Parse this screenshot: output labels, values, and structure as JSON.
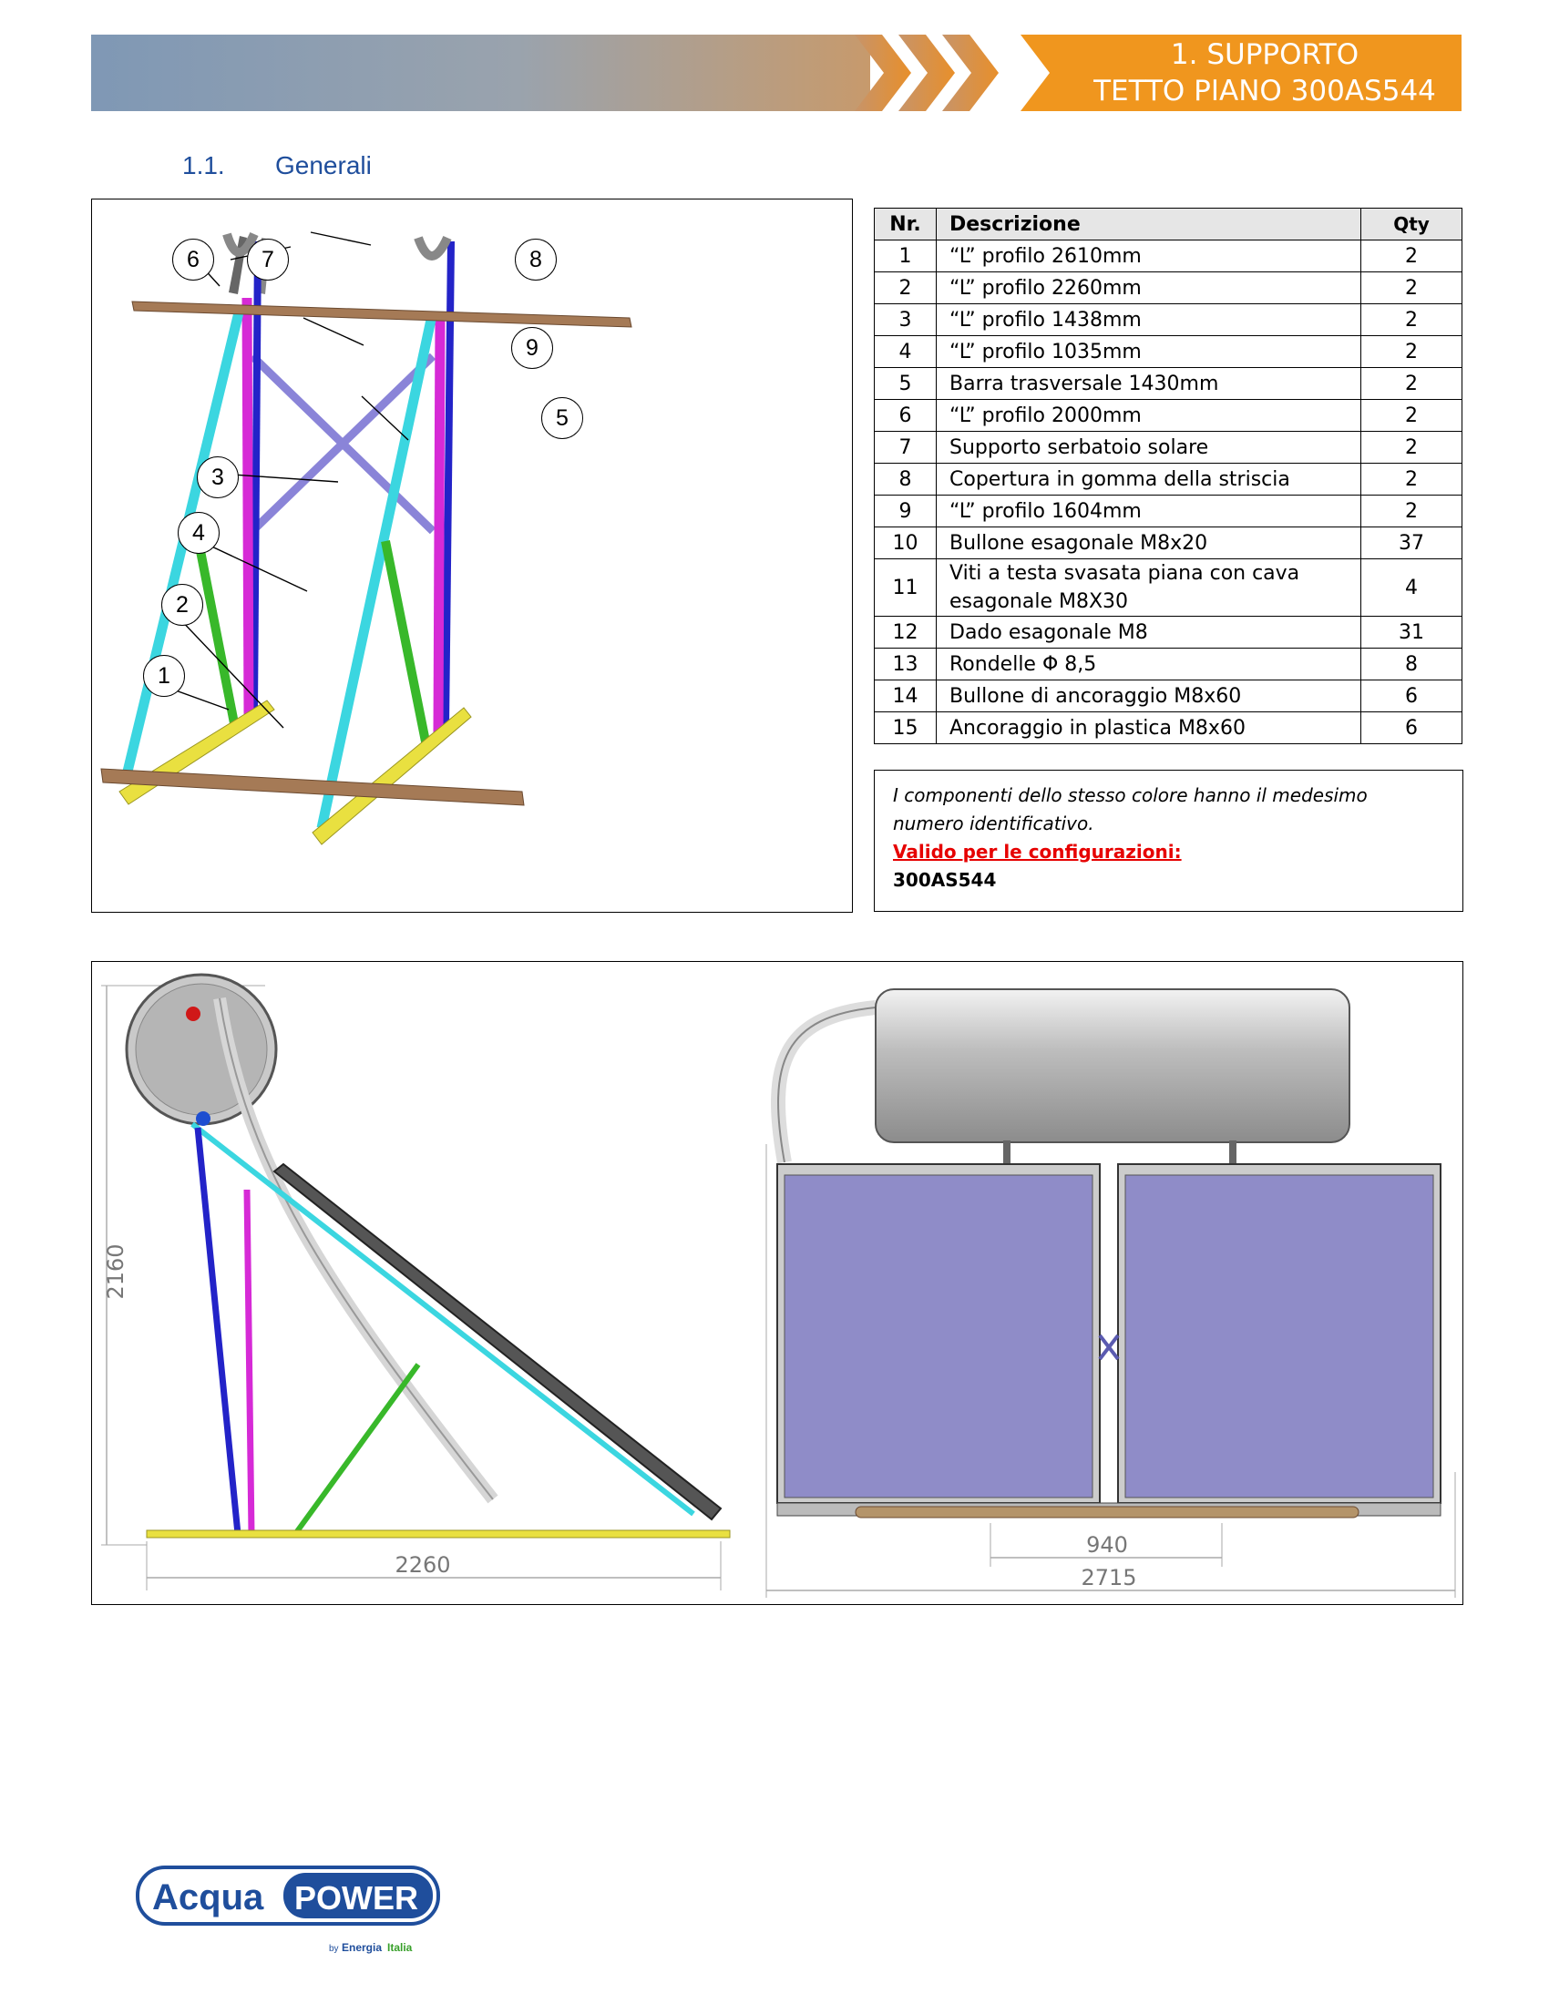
{
  "header": {
    "title_line1": "1.  SUPPORTO",
    "title_line2": "TETTO PIANO   300AS544",
    "banner_gradient": [
      "#7f98b5",
      "#c79a6c"
    ],
    "accent_color": "#f0961e"
  },
  "section": {
    "number": "1.1.",
    "title": "Generali"
  },
  "callouts": [
    "1",
    "2",
    "3",
    "4",
    "5",
    "6",
    "7",
    "8",
    "9"
  ],
  "parts_table": {
    "headers": {
      "nr": "Nr.",
      "desc": "Descrizione",
      "qty": "Qty"
    },
    "rows": [
      {
        "nr": "1",
        "desc": "“L” profilo   2610mm",
        "qty": "2"
      },
      {
        "nr": "2",
        "desc": "“L” profilo   2260mm",
        "qty": "2"
      },
      {
        "nr": "3",
        "desc": "“L” profilo   1438mm",
        "qty": "2"
      },
      {
        "nr": "4",
        "desc": "“L” profilo   1035mm",
        "qty": "2"
      },
      {
        "nr": "5",
        "desc": "Barra trasversale    1430mm",
        "qty": "2"
      },
      {
        "nr": "6",
        "desc": "“L” profilo   2000mm",
        "qty": "2"
      },
      {
        "nr": "7",
        "desc": "Supporto  serbatoio solare",
        "qty": "2"
      },
      {
        "nr": "8",
        "desc": "Copertura in gomma della striscia",
        "qty": "2"
      },
      {
        "nr": "9",
        "desc": "“L” profilo 1604mm",
        "qty": "2"
      },
      {
        "nr": "10",
        "desc": "Bullone esagonale M8x20",
        "qty": "37"
      },
      {
        "nr": "11",
        "desc": "Viti a testa svasata piana con cava esagonale M8X30",
        "qty": "4"
      },
      {
        "nr": "12",
        "desc": "Dado esagonale M8",
        "qty": "31"
      },
      {
        "nr": "13",
        "desc": "Rondelle Φ 8,5",
        "qty": "8"
      },
      {
        "nr": "14",
        "desc": "Bullone di ancoraggio M8x60",
        "qty": "6"
      },
      {
        "nr": "15",
        "desc": "Ancoraggio in plastica M8x60",
        "qty": "6"
      }
    ]
  },
  "note": {
    "line1": "I componenti dello stesso colore hanno il medesimo",
    "line2": "numero identificativo.",
    "valid_label": "Valido per le configurazioni:",
    "config": "300AS544"
  },
  "dimensions": {
    "height": "2160",
    "side_width": "2260",
    "panel_gap": "940",
    "total_width": "2715"
  },
  "logo": {
    "word1": "Acqua",
    "word2": "POWER",
    "by": "by",
    "brand1": "Energia",
    "brand2": "Italia"
  }
}
